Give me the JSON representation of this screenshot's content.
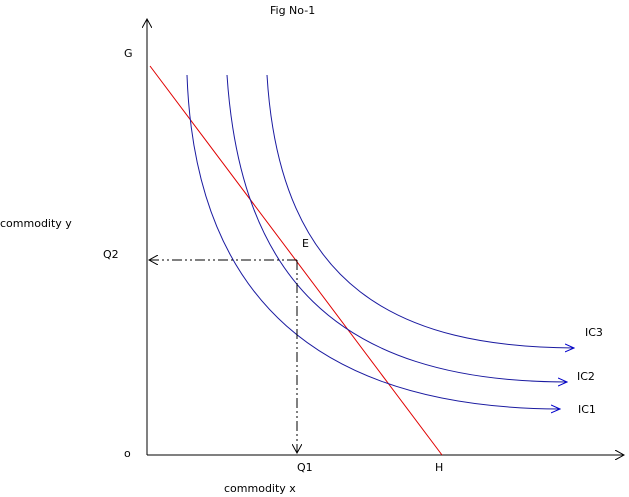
{
  "title": "Fig No-1",
  "y_axis": {
    "label": "commodity y",
    "top_label": "G",
    "point_label": "Q2"
  },
  "x_axis": {
    "label": "commodity x",
    "end_label": "H",
    "point_label": "Q1"
  },
  "origin_label": "o",
  "equilibrium_label": "E",
  "curves": [
    {
      "label": "IC1"
    },
    {
      "label": "IC2"
    },
    {
      "label": "IC3"
    }
  ]
}
